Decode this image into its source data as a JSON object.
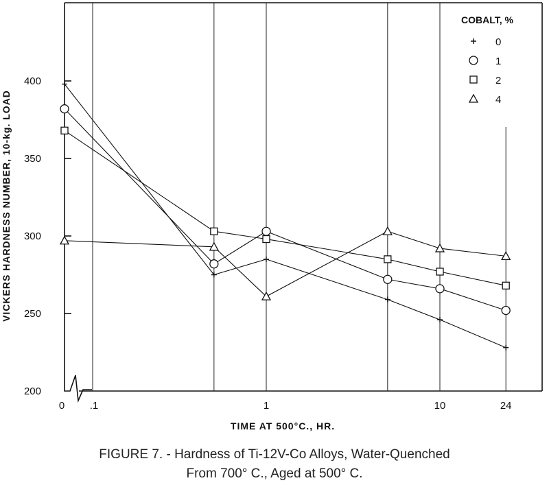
{
  "chart_data": {
    "type": "line",
    "title": "",
    "xlabel": "TIME AT 500°C., HR.",
    "ylabel": "VICKERS HARDNESS NUMBER, 10-kg. LOAD",
    "x_scale": "log (with 0 shown at left of axis break)",
    "ylim": [
      200,
      420
    ],
    "yticks": [
      "200",
      "250",
      "300",
      "350",
      "400"
    ],
    "xticks": [
      "0",
      ".1",
      "1",
      "10",
      "24"
    ],
    "x": [
      "0",
      "0.5",
      "1",
      "5",
      "10",
      "24"
    ],
    "grid": "vertical lines at measured times",
    "legend_title": "COBALT, %",
    "legend_position": "top-right",
    "series": [
      {
        "name": "0",
        "marker": "plus",
        "values": [
          398,
          275,
          285,
          259,
          246,
          228
        ]
      },
      {
        "name": "1",
        "marker": "circle",
        "values": [
          382,
          282,
          303,
          272,
          266,
          252
        ]
      },
      {
        "name": "2",
        "marker": "square",
        "values": [
          368,
          303,
          298,
          285,
          277,
          268
        ]
      },
      {
        "name": "4",
        "marker": "triangle",
        "values": [
          297,
          293,
          261,
          303,
          292,
          287
        ]
      }
    ]
  },
  "caption": {
    "line1": "FIGURE 7. - Hardness of Ti-12V-Co Alloys, Water-Quenched",
    "line2": "From 700° C., Aged at 500° C."
  }
}
